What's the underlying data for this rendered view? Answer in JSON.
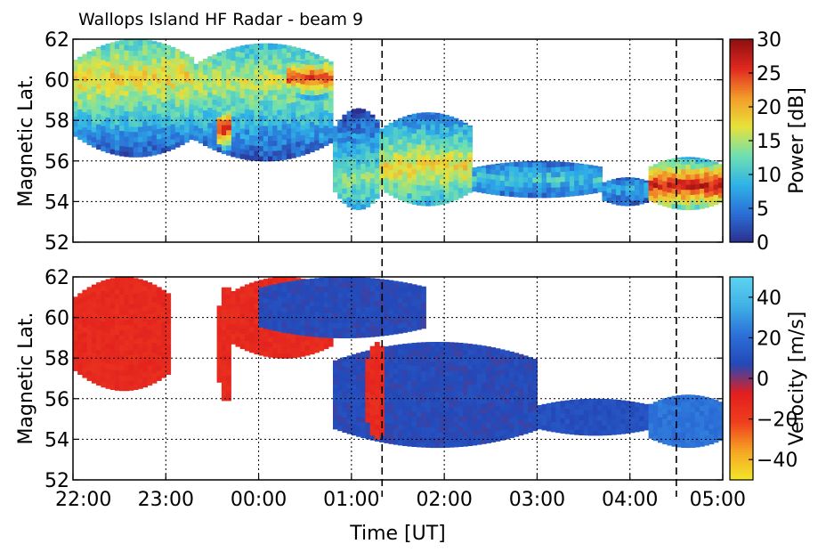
{
  "figure": {
    "title": "Wallops Island HF Radar - beam 9",
    "xlabel": "Time [UT]",
    "x_ticks": [
      "22:00",
      "23:00",
      "00:00",
      "01:00",
      "02:00",
      "03:00",
      "04:00",
      "05:00"
    ],
    "vertical_markers_hours": [
      3.33,
      6.5
    ]
  },
  "chart_data": [
    {
      "type": "heatmap",
      "name": "power-panel",
      "ylabel": "Magnetic Lat.",
      "ylim": [
        52,
        62
      ],
      "y_ticks": [
        "52",
        "54",
        "56",
        "58",
        "60",
        "62"
      ],
      "xlim_hours_after_2200": [
        0,
        7
      ],
      "colorbar": {
        "label": "Power [dB]",
        "range": [
          0,
          30
        ],
        "ticks": [
          "0",
          "5",
          "10",
          "15",
          "20",
          "25",
          "30"
        ],
        "colormap": [
          "#2b2f8f",
          "#2a6fd6",
          "#2fb3e8",
          "#6fe0b0",
          "#e8e23a",
          "#f39b2a",
          "#e0281f",
          "#8e1010"
        ]
      },
      "grid": true,
      "regions": [
        {
          "t0": 0.0,
          "t1": 1.3,
          "lat0": 56.2,
          "lat1": 62.0,
          "value": 16,
          "peak_lat": 60.0
        },
        {
          "t0": 1.3,
          "t1": 2.8,
          "lat0": 56.0,
          "lat1": 61.8,
          "value": 14,
          "peak_lat": 59.8
        },
        {
          "t0": 1.55,
          "t1": 1.7,
          "lat0": 56.5,
          "lat1": 58.5,
          "value": 24,
          "peak_lat": 57.5
        },
        {
          "t0": 2.3,
          "t1": 2.8,
          "lat0": 59.0,
          "lat1": 61.0,
          "value": 22,
          "peak_lat": 60.0
        },
        {
          "t0": 2.8,
          "t1": 3.3,
          "lat0": 53.6,
          "lat1": 58.6,
          "value": 12,
          "peak_lat": 55.0
        },
        {
          "t0": 3.3,
          "t1": 4.3,
          "lat0": 53.8,
          "lat1": 58.4,
          "value": 16,
          "peak_lat": 55.6
        },
        {
          "t0": 4.3,
          "t1": 5.7,
          "lat0": 54.2,
          "lat1": 56.0,
          "value": 9,
          "peak_lat": 55.0
        },
        {
          "t0": 5.7,
          "t1": 6.2,
          "lat0": 53.8,
          "lat1": 55.2,
          "value": 7,
          "peak_lat": 54.5
        },
        {
          "t0": 6.2,
          "t1": 7.0,
          "lat0": 53.6,
          "lat1": 56.2,
          "value": 24,
          "peak_lat": 54.7
        }
      ]
    },
    {
      "type": "heatmap",
      "name": "velocity-panel",
      "ylabel": "Magnetic Lat.",
      "ylim": [
        52,
        62
      ],
      "y_ticks": [
        "52",
        "54",
        "56",
        "58",
        "60",
        "62"
      ],
      "xlim_hours_after_2200": [
        0,
        7
      ],
      "colorbar": {
        "label": "Velocity [m/s]",
        "range": [
          -50,
          50
        ],
        "ticks": [
          "−40",
          "−20",
          "0",
          "20",
          "40"
        ],
        "colormap": [
          "#f3e82a",
          "#f6a623",
          "#ef3e1e",
          "#e21f1f",
          "#2448b8",
          "#2b6fd8",
          "#3fb0e6",
          "#5cd2f0"
        ]
      },
      "grid": true,
      "regions": [
        {
          "t0": 0.0,
          "t1": 1.05,
          "lat0": 56.4,
          "lat1": 62.0,
          "value": -12
        },
        {
          "t0": 1.55,
          "t1": 1.7,
          "lat0": 55.8,
          "lat1": 61.6,
          "value": -12
        },
        {
          "t0": 1.7,
          "t1": 2.8,
          "lat0": 58.0,
          "lat1": 62.0,
          "value": -12
        },
        {
          "t0": 2.0,
          "t1": 3.8,
          "lat0": 59.0,
          "lat1": 62.0,
          "value": 8
        },
        {
          "t0": 2.8,
          "t1": 5.0,
          "lat0": 53.6,
          "lat1": 58.8,
          "value": 8
        },
        {
          "t0": 5.0,
          "t1": 6.2,
          "lat0": 54.2,
          "lat1": 56.0,
          "value": 10
        },
        {
          "t0": 6.2,
          "t1": 7.0,
          "lat0": 53.6,
          "lat1": 56.2,
          "value": 22
        },
        {
          "t0": 3.15,
          "t1": 3.35,
          "lat0": 54.0,
          "lat1": 58.8,
          "value": -12
        }
      ]
    }
  ]
}
